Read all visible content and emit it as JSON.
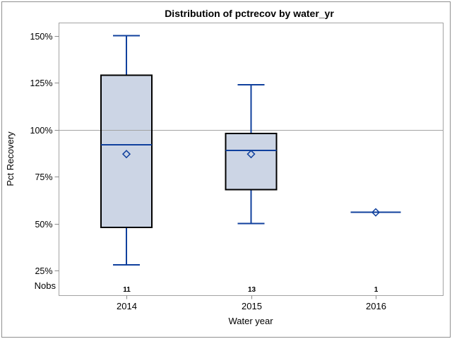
{
  "chart_data": {
    "type": "boxplot",
    "title": "Distribution of pctrecov by water_yr",
    "xlabel": "Water year",
    "ylabel": "Pct Recovery",
    "nobs_label": "Nobs",
    "ylim": [
      11.7,
      156.8
    ],
    "y_ticks": [
      {
        "value": 150,
        "label": "150%"
      },
      {
        "value": 125,
        "label": "125%"
      },
      {
        "value": 100,
        "label": "100%"
      },
      {
        "value": 75,
        "label": "75%"
      },
      {
        "value": 50,
        "label": "50%"
      },
      {
        "value": 25,
        "label": "25%"
      }
    ],
    "reference_line": 100,
    "grid": false,
    "legend": "none",
    "categories": [
      "2014",
      "2015",
      "2016"
    ],
    "nobs": [
      "11",
      "13",
      "1"
    ],
    "series": [
      {
        "category": "2014",
        "nobs": 11,
        "min": 28,
        "q1": 48,
        "median": 92,
        "mean": 87,
        "q3": 129,
        "max": 150
      },
      {
        "category": "2015",
        "nobs": 13,
        "min": 50,
        "q1": 68,
        "median": 89,
        "mean": 87,
        "q3": 98,
        "max": 124
      },
      {
        "category": "2016",
        "nobs": 1,
        "min": 56,
        "q1": 56,
        "median": 56,
        "mean": 56,
        "q3": 56,
        "max": 56
      }
    ],
    "colors": {
      "box_fill": "#ccd5e5",
      "box_border": "#000000",
      "line": "#10409d",
      "reference_line": "#a3a3a3",
      "frame": "#a3a3a3",
      "tick": "#8a8a8a",
      "text": "#000000",
      "background": "#ffffff"
    }
  }
}
